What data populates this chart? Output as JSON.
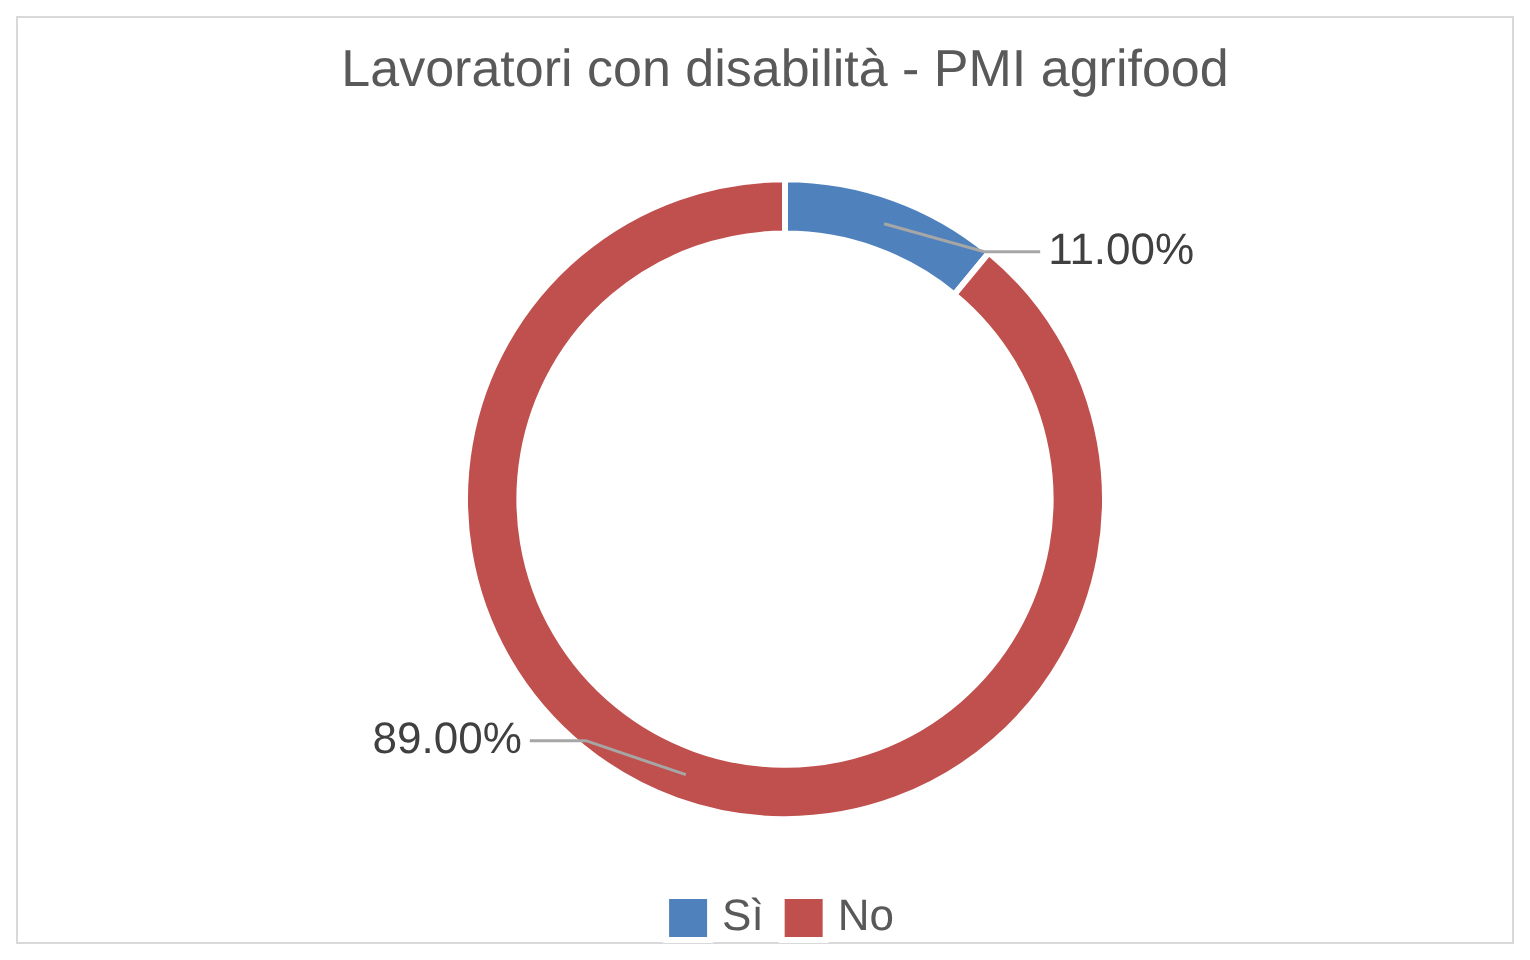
{
  "chart_data": {
    "type": "donut",
    "title": "Lavoratori con disabilità - PMI agrifood",
    "categories": [
      "Sì",
      "No"
    ],
    "values": [
      11,
      89
    ],
    "value_labels": [
      "11.00%",
      "89.00%"
    ],
    "colors": [
      "#4f81bd",
      "#c0504d"
    ],
    "legend": "bottom"
  }
}
